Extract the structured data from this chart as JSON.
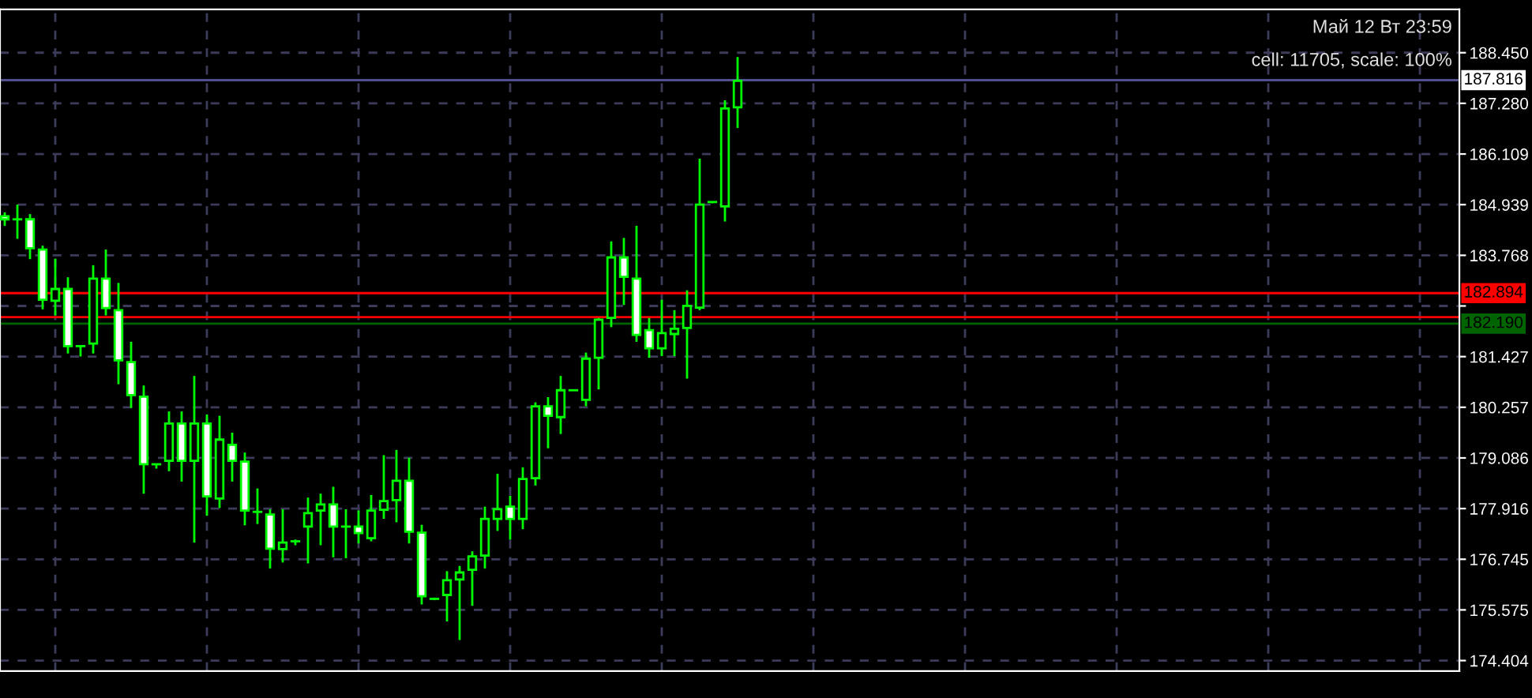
{
  "chart_data": {
    "type": "candlestick",
    "categories": [
      null,
      null,
      null,
      null,
      null,
      null,
      null,
      null,
      null,
      null,
      null,
      null,
      null,
      null,
      null,
      null,
      null,
      null,
      null,
      null,
      null,
      null,
      null,
      null,
      null,
      null,
      null,
      null,
      null,
      null,
      null,
      null,
      null,
      null,
      null,
      null,
      null,
      null,
      null,
      null,
      null,
      null,
      null,
      null,
      null,
      null,
      null,
      null,
      null,
      null,
      null,
      null,
      null,
      null,
      null,
      null,
      null,
      null,
      null,
      null,
      null,
      null,
      null,
      null,
      null,
      null,
      null,
      null,
      null,
      null,
      null,
      null,
      null,
      null,
      null,
      null,
      null,
      null,
      null,
      null,
      null,
      null,
      null,
      null,
      null,
      null,
      null,
      null,
      null,
      null,
      null,
      null,
      null,
      null,
      null,
      null,
      null,
      null,
      null,
      null,
      null,
      null,
      null,
      null,
      null,
      null,
      null,
      null,
      null,
      null,
      null,
      null,
      null,
      null,
      null,
      null
    ],
    "ohlc": [
      [
        184.67,
        184.76,
        184.45,
        184.6
      ],
      [
        184.6,
        184.94,
        184.15,
        184.6
      ],
      [
        184.6,
        184.72,
        183.68,
        183.93
      ],
      [
        183.9,
        183.99,
        182.52,
        182.74
      ],
      [
        182.72,
        183.69,
        182.38,
        182.99
      ],
      [
        182.99,
        183.26,
        181.5,
        181.67
      ],
      [
        181.67,
        181.67,
        181.43,
        181.67
      ],
      [
        181.73,
        183.54,
        181.5,
        183.23
      ],
      [
        183.23,
        183.9,
        182.38,
        182.55
      ],
      [
        182.5,
        183.13,
        180.79,
        181.34
      ],
      [
        181.3,
        181.77,
        180.24,
        180.54
      ],
      [
        180.5,
        180.76,
        178.26,
        178.94
      ],
      [
        178.94,
        178.94,
        178.84,
        178.94
      ],
      [
        179.02,
        180.16,
        178.78,
        179.88
      ],
      [
        179.88,
        180.16,
        178.54,
        179.02
      ],
      [
        179.02,
        180.98,
        177.13,
        179.88
      ],
      [
        179.88,
        180.09,
        177.75,
        178.2
      ],
      [
        178.15,
        180.06,
        177.93,
        179.51
      ],
      [
        179.39,
        179.67,
        178.54,
        179.02
      ],
      [
        179.0,
        179.21,
        177.53,
        177.87
      ],
      [
        177.84,
        178.38,
        177.56,
        177.84
      ],
      [
        177.78,
        177.9,
        176.53,
        176.99
      ],
      [
        176.98,
        177.9,
        176.67,
        177.13
      ],
      [
        177.16,
        177.2,
        177.07,
        177.16
      ],
      [
        177.5,
        178.17,
        176.65,
        177.81
      ],
      [
        177.87,
        178.26,
        177.07,
        178.01
      ],
      [
        178.01,
        178.42,
        176.79,
        177.5
      ],
      [
        177.5,
        177.9,
        176.77,
        177.5
      ],
      [
        177.5,
        177.87,
        177.11,
        177.35
      ],
      [
        177.23,
        178.23,
        177.16,
        177.87
      ],
      [
        177.89,
        179.15,
        177.68,
        178.09
      ],
      [
        178.11,
        179.27,
        177.6,
        178.56
      ],
      [
        178.56,
        179.09,
        177.11,
        177.38
      ],
      [
        177.36,
        177.54,
        175.7,
        175.89
      ],
      [
        175.83,
        175.86,
        175.8,
        175.83
      ],
      [
        175.92,
        176.47,
        175.31,
        176.26
      ],
      [
        176.28,
        176.59,
        174.88,
        176.44
      ],
      [
        176.5,
        176.93,
        175.67,
        176.81
      ],
      [
        176.83,
        177.96,
        176.53,
        177.68
      ],
      [
        177.68,
        178.72,
        177.4,
        177.9
      ],
      [
        177.96,
        178.21,
        177.2,
        177.68
      ],
      [
        177.68,
        178.87,
        177.44,
        178.6
      ],
      [
        178.62,
        180.37,
        178.45,
        180.28
      ],
      [
        180.28,
        180.49,
        179.31,
        180.06
      ],
      [
        180.03,
        180.98,
        179.64,
        180.65
      ],
      [
        180.65,
        180.65,
        180.65,
        180.65
      ],
      [
        180.43,
        181.52,
        180.28,
        181.38
      ],
      [
        181.4,
        182.32,
        180.67,
        182.28
      ],
      [
        182.32,
        184.09,
        182.11,
        183.72
      ],
      [
        183.72,
        184.17,
        182.62,
        183.27
      ],
      [
        183.23,
        184.45,
        181.77,
        181.93
      ],
      [
        182.04,
        182.32,
        181.4,
        181.62
      ],
      [
        181.62,
        182.74,
        181.44,
        181.97
      ],
      [
        181.95,
        182.5,
        181.44,
        182.07
      ],
      [
        182.09,
        182.96,
        180.92,
        182.6
      ],
      [
        182.56,
        186.0,
        182.5,
        184.94
      ],
      [
        185.0,
        185.0,
        184.97,
        185.0
      ],
      [
        184.9,
        187.35,
        184.55,
        187.16
      ],
      [
        187.19,
        188.35,
        186.71,
        187.8
      ],
      null,
      null,
      null,
      null,
      null,
      null,
      null,
      null,
      null,
      null,
      null,
      null,
      null,
      null,
      null,
      null,
      null,
      null,
      null,
      null,
      null,
      null,
      null,
      null,
      null,
      null,
      null,
      null,
      null,
      null,
      null,
      null,
      null,
      null,
      null,
      null,
      null,
      null,
      null,
      null,
      null,
      null,
      null,
      null,
      null,
      null,
      null,
      null,
      null,
      null,
      null,
      null,
      null,
      null,
      null,
      null,
      null
    ],
    "color": "#00ff00",
    "colors": [
      "#ffffff",
      "#00ff00",
      "#ffffff",
      "#ffffff",
      "#000000",
      "#ffffff",
      "#00ff00",
      "#000000",
      "#ffffff",
      "#ffffff",
      "#ffffff",
      "#ffffff",
      "#00ff00",
      "#000000",
      "#ffffff",
      "#000000",
      "#ffffff",
      "#000000",
      "#ffffff",
      "#ffffff",
      "#00ff00",
      "#ffffff",
      "#000000",
      "#00ff00",
      "#000000",
      "#000000",
      "#ffffff",
      "#00ff00",
      "#ffffff",
      "#000000",
      "#000000",
      "#000000",
      "#ffffff",
      "#ffffff",
      "#00ff00",
      "#000000",
      "#000000",
      "#000000",
      "#000000",
      "#000000",
      "#ffffff",
      "#000000",
      "#000000",
      "#ffffff",
      "#000000",
      "#00ff00",
      "#000000",
      "#000000",
      "#000000",
      "#ffffff",
      "#ffffff",
      "#ffffff",
      "#000000",
      "#000000",
      "#000000",
      "#000000",
      "#00ff00",
      "#000000",
      "#000000",
      null,
      null,
      null,
      null,
      null,
      null,
      null,
      null,
      null,
      null,
      null,
      null,
      null,
      null,
      null,
      null,
      null,
      null,
      null,
      null,
      null,
      null,
      null,
      null,
      null,
      null,
      null,
      null,
      null,
      null,
      null,
      null,
      null,
      null,
      null,
      null,
      null,
      null,
      null,
      null,
      null,
      null,
      null,
      null,
      null,
      null,
      null,
      null,
      null,
      null,
      null,
      null,
      null,
      null,
      null,
      null,
      null
    ],
    "ylim": [
      174.16,
      189.45
    ],
    "yticks": [
      {
        "value": 188.45,
        "label": "188.450"
      },
      {
        "value": 187.28,
        "label": "187.280"
      },
      {
        "value": 186.109,
        "label": "186.109"
      },
      {
        "value": 184.939,
        "label": "184.939"
      },
      {
        "value": 183.768,
        "label": "183.768"
      },
      {
        "value": 182.598,
        "label": null
      },
      {
        "value": 181.427,
        "label": "181.427"
      },
      {
        "value": 180.257,
        "label": "180.257"
      },
      {
        "value": 179.086,
        "label": "179.086"
      },
      {
        "value": 177.916,
        "label": "177.916"
      },
      {
        "value": 176.745,
        "label": "176.745"
      },
      {
        "value": 175.575,
        "label": "175.575"
      },
      {
        "value": 174.404,
        "label": "174.404"
      }
    ],
    "tick_labels": "y",
    "grid": true,
    "ref_lines": [
      {
        "axis": "y",
        "value": 187.816,
        "label": "187.816",
        "color": "#50508c"
      },
      {
        "axis": "y",
        "value": 182.894,
        "label": "182.894",
        "color": "#ff0000"
      },
      {
        "axis": "y",
        "value": 182.34,
        "label": null,
        "color": "#ff0000"
      },
      {
        "axis": "y",
        "value": 182.19,
        "label": "182.190",
        "color": "#006400"
      }
    ],
    "annotations": [
      "Май 12 Вт 23:59",
      "cell: 11705, scale: 100%"
    ]
  }
}
